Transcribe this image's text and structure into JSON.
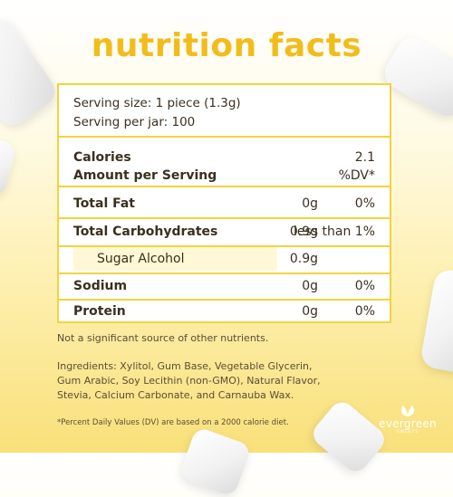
{
  "title": "nutrition facts",
  "serving": {
    "size": "Serving size: 1 piece (1.3g)",
    "per_jar": "Serving per jar: 100"
  },
  "calories": {
    "label": "Calories",
    "value": "2.1",
    "amount_label": "Amount per Serving",
    "dv_label": "%DV*"
  },
  "rows": [
    {
      "label": "Total Fat",
      "amount": "0g",
      "dv": "0%"
    },
    {
      "label": "Total Carbohydrates",
      "amount": "0.9g",
      "dv": "less than 1%"
    },
    {
      "label": "Sugar Alcohol",
      "amount": "0.9g",
      "dv": ""
    },
    {
      "label": "Sodium",
      "amount": "0g",
      "dv": "0%"
    },
    {
      "label": "Protein",
      "amount": "0g",
      "dv": "0%"
    }
  ],
  "note": "Not a significant source of other nutrients.",
  "ingredients": "Ingredients: Xylitol, Gum Base, Vegetable Glycerin, Gum Arabic, Soy Lecithin (non-GMO), Natural Flavor, Stevia, Calcium Carbonate, and Carnauba Wax.",
  "footnote": "*Percent Daily Values (DV) are based on a 2000 calorie diet.",
  "logo": {
    "name": "evergreen",
    "sub": "SWEETS",
    "icon": "leaf-icon"
  },
  "colors": {
    "accent": "#f2bd1c",
    "border": "#f2d33d",
    "shade": "#fff8d6"
  }
}
